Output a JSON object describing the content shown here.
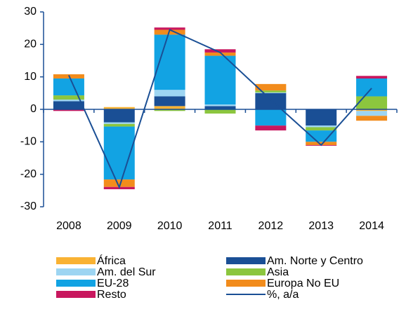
{
  "chart_data": {
    "type": "bar",
    "stacked": true,
    "categories": [
      "2008",
      "2009",
      "2010",
      "2011",
      "2012",
      "2013",
      "2014"
    ],
    "ylim": [
      -30,
      30
    ],
    "yticks": [
      -30,
      -20,
      -10,
      0,
      10,
      20,
      30
    ],
    "series": [
      {
        "name": "África",
        "color": "#f9b233",
        "values": [
          0,
          0.7,
          1,
          0,
          0,
          0,
          -0.5
        ]
      },
      {
        "name": "Am. Norte y Centro",
        "color": "#1a4f95",
        "values": [
          2.5,
          -4,
          3,
          1,
          5,
          -5,
          0
        ]
      },
      {
        "name": "Am. del Sur",
        "color": "#9dd5f2",
        "values": [
          0.5,
          -0.5,
          2,
          0.5,
          0.2,
          -0.5,
          -1.5
        ]
      },
      {
        "name": "Asia",
        "color": "#8cc63e",
        "values": [
          1.3,
          -0.8,
          -0.5,
          -1.3,
          0.6,
          -1,
          4
        ]
      },
      {
        "name": "EU-28",
        "color": "#12a3e3",
        "values": [
          5.2,
          -16.3,
          17,
          15,
          -5,
          -3.5,
          5.5
        ]
      },
      {
        "name": "Europa No EU",
        "color": "#f28c1c",
        "values": [
          1.3,
          -2.3,
          1.5,
          1,
          2,
          -1,
          -1.5
        ]
      },
      {
        "name": "Resto",
        "color": "#c8175e",
        "values": [
          -0.5,
          -0.7,
          0.7,
          1,
          -1.5,
          -0.2,
          0.8
        ]
      },
      {
        "name": "%, a/a",
        "color": "#1a4f95",
        "type": "line",
        "values": [
          10.5,
          -24,
          24.5,
          17.5,
          3,
          -11,
          6.5
        ]
      }
    ]
  }
}
